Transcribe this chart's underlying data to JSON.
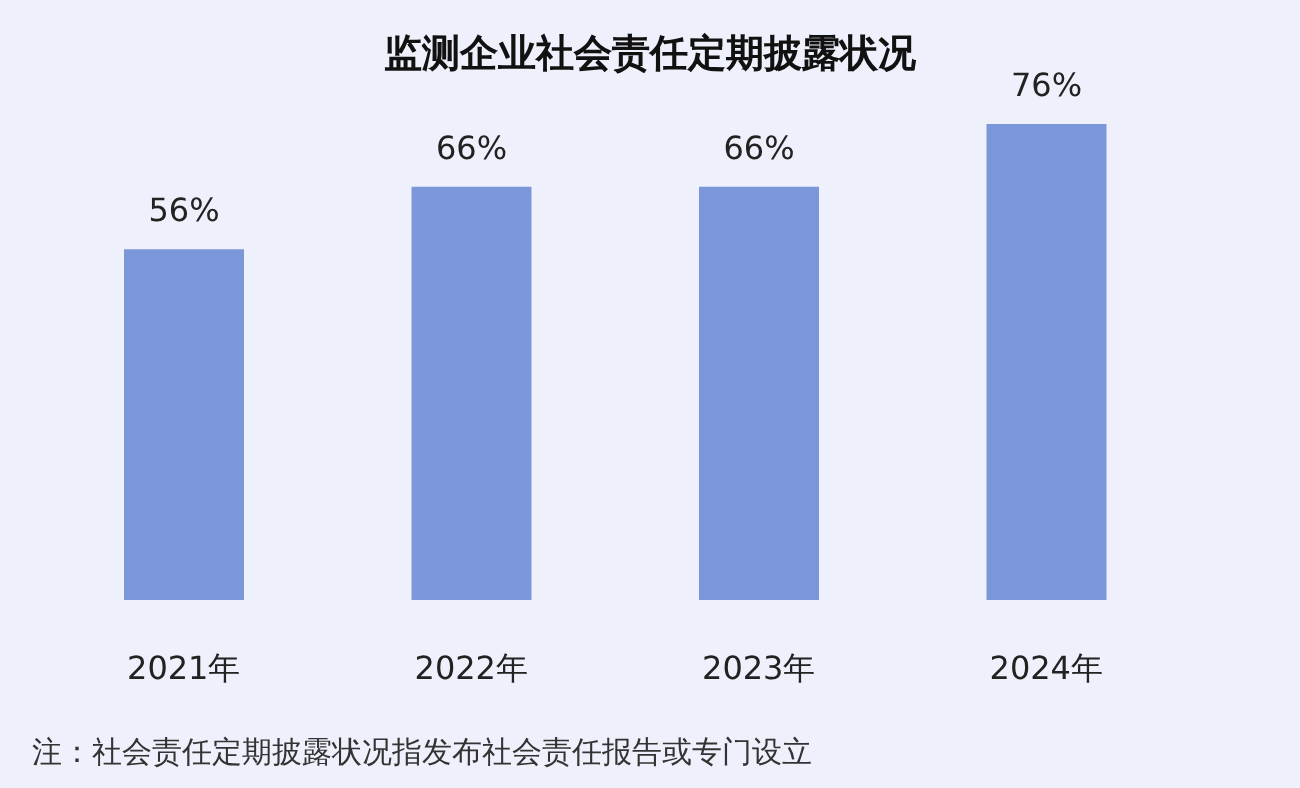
{
  "chart_data": {
    "type": "bar",
    "title": "监测企业社会责任定期披露状况",
    "categories": [
      "2021年",
      "2022年",
      "2023年",
      "2024年"
    ],
    "values": [
      56,
      66,
      66,
      76
    ],
    "value_labels": [
      "56%",
      "66%",
      "66%",
      "76%"
    ],
    "color": "#7b97d9",
    "grid": false,
    "annotations": [
      "注：社会责任定期披露状况指发布社会责任报告或专门设立"
    ]
  }
}
